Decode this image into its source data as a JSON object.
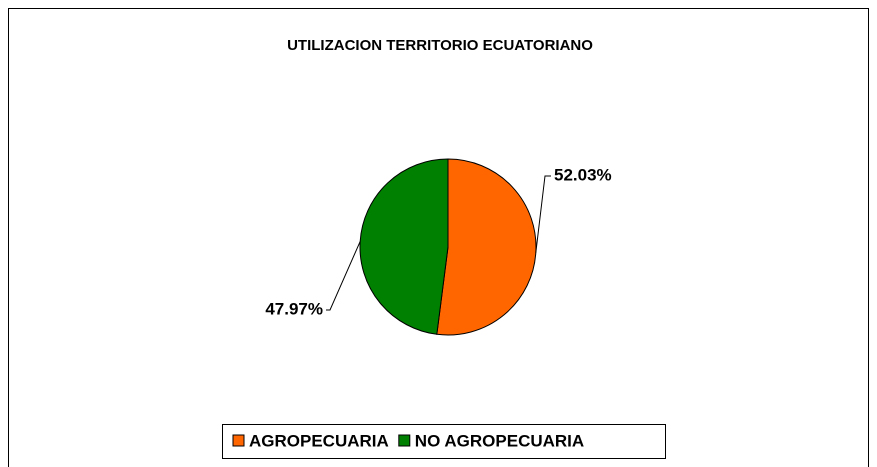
{
  "chart_data": {
    "type": "pie",
    "title": "UTILIZACION TERRITORIO ECUATORIANO",
    "categories": [
      "AGROPECUARIA",
      "NO AGROPECUARIA"
    ],
    "values": [
      52.03,
      47.97
    ],
    "value_labels": [
      "52.03%",
      "47.97%"
    ],
    "colors": [
      "#ff6600",
      "#008000"
    ],
    "legend": "bottom"
  }
}
